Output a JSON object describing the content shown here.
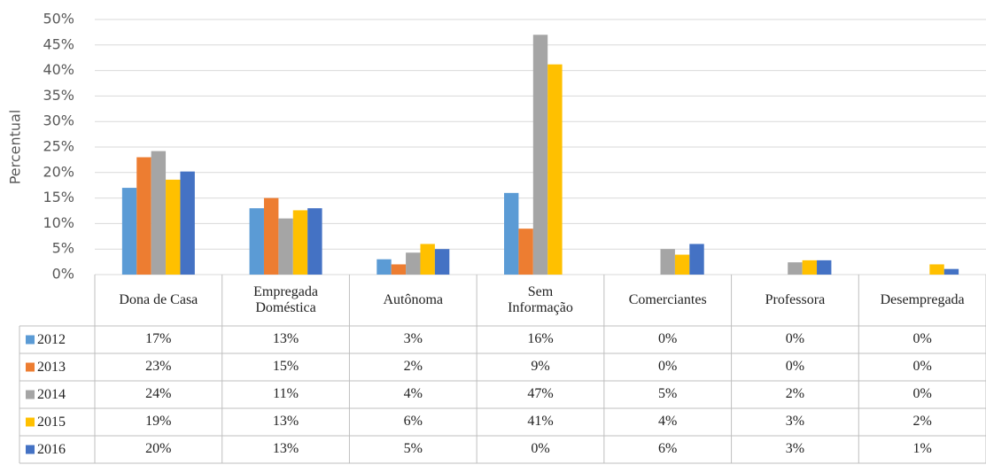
{
  "chart_data": {
    "type": "bar",
    "y_label": "Percentual",
    "categories": [
      "Dona de Casa",
      "Empregada Doméstica",
      "Autônoma",
      "Sem Informação",
      "Comerciantes",
      "Professora",
      "Desempregada"
    ],
    "series": [
      {
        "name": "2012",
        "color": "#5b9bd5",
        "values": [
          17,
          13,
          3,
          16,
          0,
          0,
          0
        ],
        "value_labels": [
          "17%",
          "13%",
          "3%",
          "16%",
          "0%",
          "0%",
          "0%"
        ]
      },
      {
        "name": "2013",
        "color": "#ed7d31",
        "values": [
          23,
          15,
          2,
          9,
          0,
          0,
          0
        ],
        "value_labels": [
          "23%",
          "15%",
          "2%",
          "9%",
          "0%",
          "0%",
          "0%"
        ]
      },
      {
        "name": "2014",
        "color": "#a5a5a5",
        "values": [
          24.2,
          11,
          4.3,
          47,
          5,
          2.4,
          0
        ],
        "value_labels": [
          "24%",
          "11%",
          "4%",
          "47%",
          "5%",
          "2%",
          "0%"
        ]
      },
      {
        "name": "2015",
        "color": "#ffc000",
        "values": [
          18.6,
          12.6,
          6,
          41.2,
          3.9,
          2.8,
          2
        ],
        "value_labels": [
          "19%",
          "13%",
          "6%",
          "41%",
          "4%",
          "3%",
          "2%"
        ]
      },
      {
        "name": "2016",
        "color": "#4472c4",
        "values": [
          20.2,
          13,
          5,
          0,
          6,
          2.8,
          1.1
        ],
        "value_labels": [
          "20%",
          "13%",
          "5%",
          "0%",
          "6%",
          "3%",
          "1%"
        ]
      }
    ],
    "ylim": [
      0,
      50
    ],
    "yticks": [
      {
        "value": 0,
        "label": "0%"
      },
      {
        "value": 5,
        "label": "5%"
      },
      {
        "value": 10,
        "label": "10%"
      },
      {
        "value": 15,
        "label": "15%"
      },
      {
        "value": 20,
        "label": "20%"
      },
      {
        "value": 25,
        "label": "25%"
      },
      {
        "value": 30,
        "label": "30%"
      },
      {
        "value": 35,
        "label": "35%"
      },
      {
        "value": 40,
        "label": "40%"
      },
      {
        "value": 45,
        "label": "45%"
      },
      {
        "value": 50,
        "label": "50%"
      }
    ],
    "grid": true
  }
}
